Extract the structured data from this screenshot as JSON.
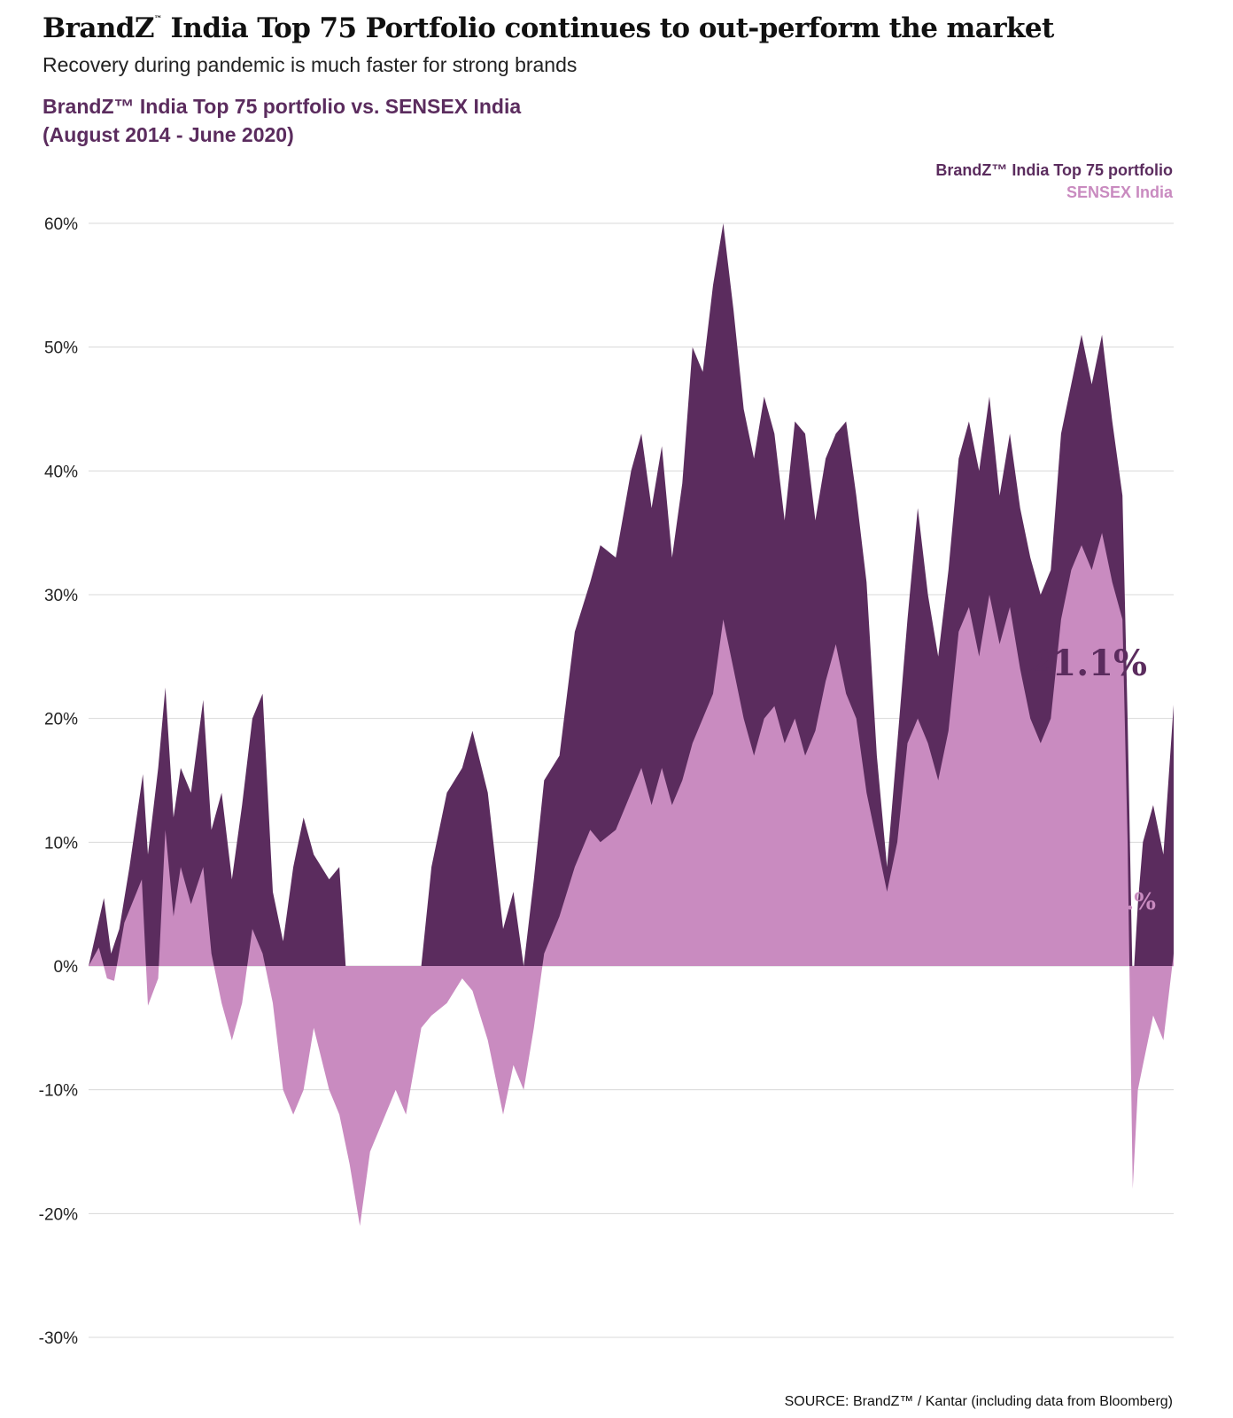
{
  "header": {
    "title_main": "BrandZ",
    "title_tm": "™",
    "title_rest": " India Top 75 Portfolio continues to out-perform the market",
    "subtitle": "Recovery during pandemic is much faster for strong brands",
    "chart_title_line1": "BrandZ™ India Top 75 portfolio vs. SENSEX India",
    "chart_title_line2": "(August 2014 - June 2020)"
  },
  "colors": {
    "portfolio": "#5b2c5e",
    "sensex": "#c98bc0",
    "grid": "#d8d8d8"
  },
  "source": "SOURCE: BrandZ™ / Kantar (including data from Bloomberg)",
  "chart_data": {
    "type": "area",
    "title": "BrandZ™ India Top 75 portfolio vs. SENSEX India",
    "subtitle": "(August 2014 - June 2020)",
    "xlabel": "",
    "ylabel": "",
    "ylim": [
      -30,
      60
    ],
    "yticks": [
      "60%",
      "50%",
      "40%",
      "30%",
      "20%",
      "10%",
      "0%",
      "-10%",
      "-20%",
      "-30%"
    ],
    "ytick_values": [
      60,
      50,
      40,
      30,
      20,
      10,
      0,
      -10,
      -20,
      -30
    ],
    "grid": true,
    "legend_position": "top-right",
    "x_range": [
      "2014-08",
      "2020-06"
    ],
    "series": [
      {
        "name": "BrandZ™ India Top 75 portfolio",
        "end_label": "21.1%",
        "points": [
          [
            0,
            0
          ],
          [
            1.5,
            5.5
          ],
          [
            2.2,
            1
          ],
          [
            3,
            3
          ],
          [
            4,
            8
          ],
          [
            5.3,
            15.5
          ],
          [
            5.8,
            9
          ],
          [
            6.8,
            16
          ],
          [
            7.5,
            22.5
          ],
          [
            8.3,
            12
          ],
          [
            9,
            16
          ],
          [
            10,
            14
          ],
          [
            11.2,
            21.5
          ],
          [
            12,
            11
          ],
          [
            13,
            14
          ],
          [
            14,
            7
          ],
          [
            15,
            13
          ],
          [
            16,
            20
          ],
          [
            17,
            22
          ],
          [
            18,
            6
          ],
          [
            19,
            2
          ],
          [
            20,
            8
          ],
          [
            21,
            12
          ],
          [
            22,
            9
          ],
          [
            23.5,
            7
          ],
          [
            24.5,
            8
          ],
          [
            25.5,
            -5
          ],
          [
            26.5,
            -11
          ],
          [
            27.5,
            -6
          ],
          [
            28.5,
            -8
          ],
          [
            30,
            -1
          ],
          [
            31,
            -7
          ],
          [
            32.5,
            0
          ],
          [
            33.5,
            8
          ],
          [
            35,
            14
          ],
          [
            36.5,
            16
          ],
          [
            37.5,
            19
          ],
          [
            39,
            14
          ],
          [
            40.5,
            3
          ],
          [
            41.5,
            6
          ],
          [
            42.5,
            0
          ],
          [
            43.5,
            7
          ],
          [
            44.5,
            15
          ],
          [
            46,
            17
          ],
          [
            47.5,
            27
          ],
          [
            49,
            31
          ],
          [
            50,
            34
          ],
          [
            51.5,
            33
          ],
          [
            53,
            40
          ],
          [
            54,
            43
          ],
          [
            55,
            37
          ],
          [
            56,
            42
          ],
          [
            57,
            33
          ],
          [
            58,
            39
          ],
          [
            59,
            50
          ],
          [
            60,
            48
          ],
          [
            61,
            55
          ],
          [
            62,
            60
          ],
          [
            63,
            53
          ],
          [
            64,
            45
          ],
          [
            65,
            41
          ],
          [
            66,
            46
          ],
          [
            67,
            43
          ],
          [
            68,
            36
          ],
          [
            69,
            44
          ],
          [
            70,
            43
          ],
          [
            71,
            36
          ],
          [
            72,
            41
          ],
          [
            73,
            43
          ],
          [
            74,
            44
          ],
          [
            75,
            38
          ],
          [
            76,
            31
          ],
          [
            77,
            17
          ],
          [
            78,
            8
          ],
          [
            79,
            18
          ],
          [
            80,
            28
          ],
          [
            81,
            37
          ],
          [
            82,
            30
          ],
          [
            83,
            25
          ],
          [
            84,
            32
          ],
          [
            85,
            41
          ],
          [
            86,
            44
          ],
          [
            87,
            40
          ],
          [
            88,
            46
          ],
          [
            89,
            38
          ],
          [
            90,
            43
          ],
          [
            91,
            37
          ],
          [
            92,
            33
          ],
          [
            93,
            30
          ],
          [
            94,
            32
          ],
          [
            95,
            43
          ],
          [
            96,
            47
          ],
          [
            97,
            51
          ],
          [
            98,
            47
          ],
          [
            99,
            51
          ],
          [
            100,
            44
          ],
          [
            101,
            38
          ],
          [
            101.5,
            20
          ],
          [
            102,
            -2
          ],
          [
            102.5,
            5
          ],
          [
            103,
            10
          ],
          [
            104,
            13
          ],
          [
            105,
            9
          ],
          [
            106,
            21.1
          ]
        ]
      },
      {
        "name": "SENSEX India",
        "end_label": "…%",
        "points": [
          [
            0,
            0
          ],
          [
            1,
            1.5
          ],
          [
            1.8,
            -1
          ],
          [
            2.5,
            -1.2
          ],
          [
            3.5,
            3.5
          ],
          [
            5.2,
            7
          ],
          [
            5.8,
            -3.2
          ],
          [
            6.8,
            -1
          ],
          [
            7.5,
            11
          ],
          [
            8.3,
            4
          ],
          [
            9,
            8
          ],
          [
            10,
            5
          ],
          [
            11.2,
            8
          ],
          [
            12,
            1
          ],
          [
            13,
            -3
          ],
          [
            14,
            -6
          ],
          [
            15,
            -3
          ],
          [
            16,
            3
          ],
          [
            17,
            1
          ],
          [
            18,
            -3
          ],
          [
            19,
            -10
          ],
          [
            20,
            -12
          ],
          [
            21,
            -10
          ],
          [
            22,
            -5
          ],
          [
            23.5,
            -10
          ],
          [
            24.5,
            -12
          ],
          [
            25.5,
            -16
          ],
          [
            26.5,
            -21
          ],
          [
            27.5,
            -15
          ],
          [
            28.5,
            -13
          ],
          [
            30,
            -10
          ],
          [
            31,
            -12
          ],
          [
            32.5,
            -5
          ],
          [
            33.5,
            -4
          ],
          [
            35,
            -3
          ],
          [
            36.5,
            -1
          ],
          [
            37.5,
            -2
          ],
          [
            39,
            -6
          ],
          [
            40.5,
            -12
          ],
          [
            41.5,
            -8
          ],
          [
            42.5,
            -10
          ],
          [
            43.5,
            -5
          ],
          [
            44.5,
            1
          ],
          [
            46,
            4
          ],
          [
            47.5,
            8
          ],
          [
            49,
            11
          ],
          [
            50,
            10
          ],
          [
            51.5,
            11
          ],
          [
            53,
            14
          ],
          [
            54,
            16
          ],
          [
            55,
            13
          ],
          [
            56,
            16
          ],
          [
            57,
            13
          ],
          [
            58,
            15
          ],
          [
            59,
            18
          ],
          [
            60,
            20
          ],
          [
            61,
            22
          ],
          [
            62,
            28
          ],
          [
            63,
            24
          ],
          [
            64,
            20
          ],
          [
            65,
            17
          ],
          [
            66,
            20
          ],
          [
            67,
            21
          ],
          [
            68,
            18
          ],
          [
            69,
            20
          ],
          [
            70,
            17
          ],
          [
            71,
            19
          ],
          [
            72,
            23
          ],
          [
            73,
            26
          ],
          [
            74,
            22
          ],
          [
            75,
            20
          ],
          [
            76,
            14
          ],
          [
            77,
            10
          ],
          [
            78,
            6
          ],
          [
            79,
            10
          ],
          [
            80,
            18
          ],
          [
            81,
            20
          ],
          [
            82,
            18
          ],
          [
            83,
            15
          ],
          [
            84,
            19
          ],
          [
            85,
            27
          ],
          [
            86,
            29
          ],
          [
            87,
            25
          ],
          [
            88,
            30
          ],
          [
            89,
            26
          ],
          [
            90,
            29
          ],
          [
            91,
            24
          ],
          [
            92,
            20
          ],
          [
            93,
            18
          ],
          [
            94,
            20
          ],
          [
            95,
            28
          ],
          [
            96,
            32
          ],
          [
            97,
            34
          ],
          [
            98,
            32
          ],
          [
            99,
            35
          ],
          [
            100,
            31
          ],
          [
            101,
            28
          ],
          [
            101.5,
            10
          ],
          [
            102,
            -18
          ],
          [
            102.5,
            -10
          ],
          [
            103,
            -8
          ],
          [
            104,
            -4
          ],
          [
            105,
            -6
          ],
          [
            106,
            1
          ]
        ]
      }
    ]
  }
}
